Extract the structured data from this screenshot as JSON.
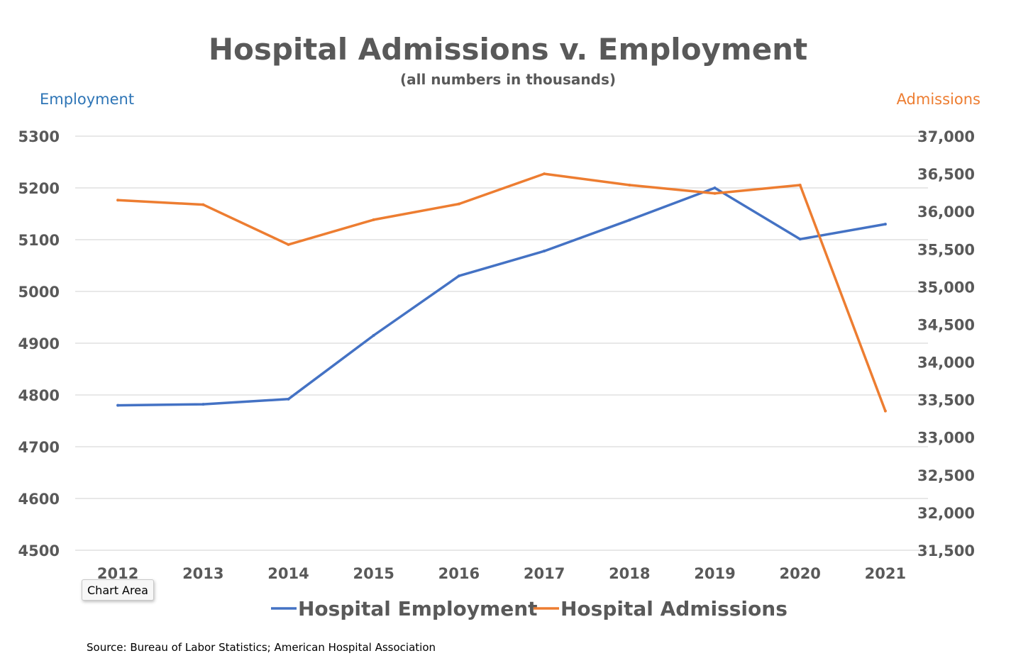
{
  "chart_data": {
    "type": "line",
    "title": "Hospital Admissions v. Employment",
    "subtitle": "(all numbers in thousands)",
    "x": [
      "2012",
      "2013",
      "2014",
      "2015",
      "2016",
      "2017",
      "2018",
      "2019",
      "2020",
      "2021"
    ],
    "y_left": {
      "label": "Employment",
      "range": [
        4500,
        5300
      ],
      "ticks": [
        4500,
        4600,
        4700,
        4800,
        4900,
        5000,
        5100,
        5200,
        5300
      ],
      "tick_labels": [
        "4500",
        "4600",
        "4700",
        "4800",
        "4900",
        "5000",
        "5100",
        "5200",
        "5300"
      ],
      "color": "#2e75b6"
    },
    "y_right": {
      "label": "Admissions",
      "range": [
        31500,
        37000
      ],
      "ticks": [
        31500,
        32000,
        32500,
        33000,
        33500,
        34000,
        34500,
        35000,
        35500,
        36000,
        36500,
        37000
      ],
      "tick_labels": [
        "31,500",
        "32,000",
        "32,500",
        "33,000",
        "33,500",
        "34,000",
        "34,500",
        "35,000",
        "35,500",
        "36,000",
        "36,500",
        "37,000"
      ],
      "color": "#ed7d31"
    },
    "series": [
      {
        "name": "Hospital Employment",
        "axis": "left",
        "color": "#4472c4",
        "values": [
          4780,
          4782,
          4792,
          4915,
          5030,
          5078,
          5138,
          5200,
          5101,
          5130
        ]
      },
      {
        "name": "Hospital Admissions",
        "axis": "right",
        "color": "#ed7d31",
        "values": [
          36150,
          36090,
          35560,
          35890,
          36100,
          36500,
          36350,
          36240,
          36350,
          33350
        ]
      }
    ],
    "grid": true,
    "legend": "bottom-center",
    "source": "Source: Bureau of Labor Statistics; American Hospital Association"
  },
  "tooltip": {
    "label": "Chart Area"
  }
}
